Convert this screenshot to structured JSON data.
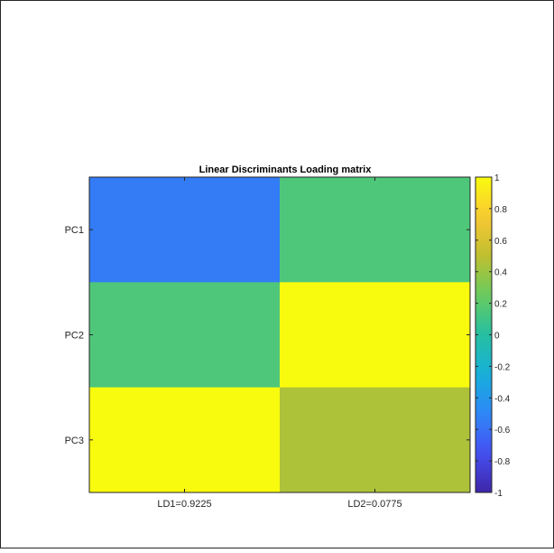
{
  "chart_data": {
    "type": "heatmap",
    "title": "Linear Discriminants Loading matrix",
    "xlabel": "",
    "ylabel": "",
    "x_categories": [
      "LD1=0.9225",
      "LD2=0.0775"
    ],
    "y_categories": [
      "PC1",
      "PC2",
      "PC3"
    ],
    "values": [
      [
        -0.55,
        0.15
      ],
      [
        0.15,
        1.0
      ],
      [
        1.0,
        0.45
      ]
    ],
    "colorbar": {
      "range": [
        -1,
        1
      ],
      "ticks": [
        -1,
        -0.8,
        -0.6,
        -0.4,
        -0.2,
        0,
        0.2,
        0.4,
        0.6,
        0.8,
        1
      ],
      "tick_labels": [
        "-1",
        "-0.8",
        "-0.6",
        "-0.4",
        "-0.2",
        "0",
        "0.2",
        "0.4",
        "0.6",
        "0.8",
        "1"
      ],
      "colormap": "parula"
    },
    "grid": false
  }
}
